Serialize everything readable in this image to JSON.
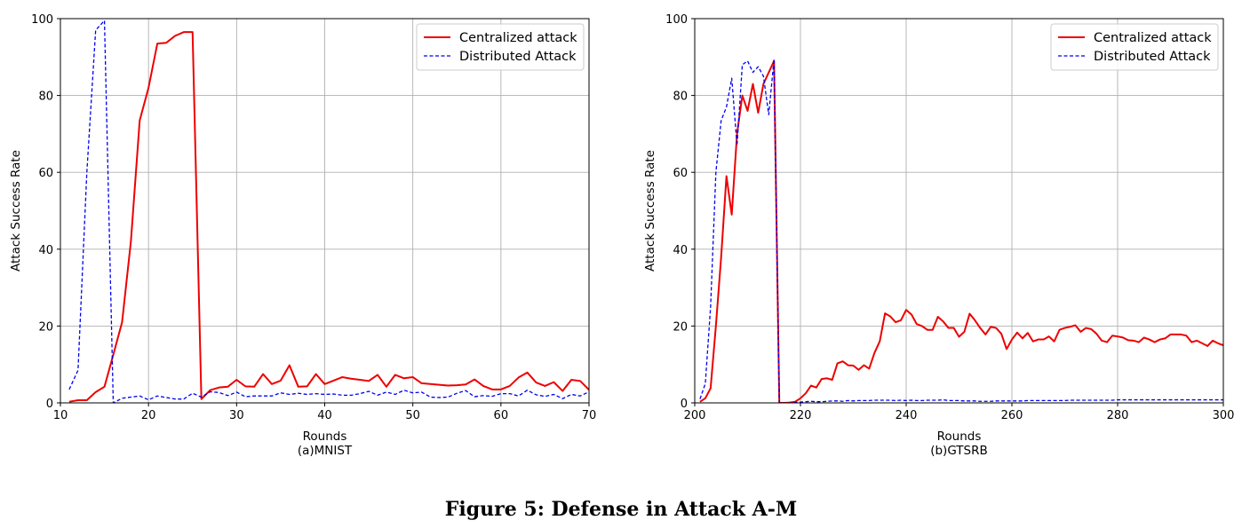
{
  "caption": "Figure 5: Defense in Attack A-M",
  "chart_data": [
    {
      "type": "line",
      "xlabel": "Rounds",
      "sublabel": "(a)MNIST",
      "ylabel": "Attack Success Rate",
      "xlim": [
        10,
        70
      ],
      "ylim": [
        0,
        100
      ],
      "xticks": [
        10,
        20,
        30,
        40,
        50,
        60,
        70
      ],
      "yticks": [
        0,
        20,
        40,
        60,
        80,
        100
      ],
      "grid": true,
      "legend_position": "top-right",
      "series": [
        {
          "name": "Centralized attack",
          "color": "#ee0000",
          "style": "solid",
          "x": [
            11,
            12,
            13,
            14,
            15,
            16,
            17,
            18,
            19,
            20,
            21,
            22,
            23,
            24,
            25,
            26,
            27,
            28,
            29,
            30,
            31,
            32,
            33,
            34,
            35,
            36,
            37,
            38,
            39,
            40,
            41,
            42,
            43,
            44,
            45,
            46,
            47,
            48,
            49,
            50,
            51,
            52,
            53,
            54,
            55,
            56,
            57,
            58,
            59,
            60,
            61,
            62,
            63,
            64,
            65,
            66,
            67,
            68,
            69,
            70
          ],
          "y": [
            0.3,
            0.7,
            0.7,
            2.8,
            4.2,
            12.5,
            21,
            42,
            73.5,
            82,
            93.5,
            93.7,
            95.5,
            96.5,
            96.5,
            1,
            3.3,
            4,
            4.2,
            6,
            4.3,
            4.2,
            7.5,
            4.9,
            5.8,
            9.8,
            4.2,
            4.3,
            7.5,
            4.9,
            5.8,
            6.7,
            6.3,
            6,
            5.7,
            7.3,
            4.2,
            7.3,
            6.4,
            6.7,
            5.1,
            4.9,
            4.7,
            4.5,
            4.6,
            4.8,
            6.1,
            4.4,
            3.5,
            3.5,
            4.4,
            6.6,
            7.9,
            5.3,
            4.4,
            5.4,
            3.1,
            6,
            5.7,
            3.4
          ]
        },
        {
          "name": "Distributed Attack",
          "color": "#0000ee",
          "style": "dashed",
          "x": [
            11,
            12,
            13,
            14,
            15,
            16,
            17,
            18,
            19,
            20,
            21,
            22,
            23,
            24,
            25,
            26,
            27,
            28,
            29,
            30,
            31,
            32,
            33,
            34,
            35,
            36,
            37,
            38,
            39,
            40,
            41,
            42,
            43,
            44,
            45,
            46,
            47,
            48,
            49,
            50,
            51,
            52,
            53,
            54,
            55,
            56,
            57,
            58,
            59,
            60,
            61,
            62,
            63,
            64,
            65,
            66,
            67,
            68,
            69,
            70
          ],
          "y": [
            3.5,
            8.5,
            60,
            97,
            99.5,
            0,
            1.2,
            1.5,
            1.8,
            0.8,
            1.8,
            1.4,
            1,
            1,
            2.5,
            1.5,
            2.9,
            2.7,
            1.9,
            2.8,
            1.6,
            1.8,
            1.8,
            1.8,
            2.6,
            2.2,
            2.5,
            2.2,
            2.4,
            2.2,
            2.3,
            2,
            2,
            2.4,
            3,
            2,
            2.8,
            2.2,
            3.3,
            2.6,
            2.8,
            1.5,
            1.4,
            1.5,
            2.5,
            3.2,
            1.6,
            1.9,
            1.7,
            2.4,
            2.4,
            1.8,
            3.3,
            2.1,
            1.7,
            2.2,
            1.1,
            2.2,
            1.8,
            2.9
          ]
        }
      ]
    },
    {
      "type": "line",
      "xlabel": "Rounds",
      "sublabel": "(b)GTSRB",
      "ylabel": "Attack Success Rate",
      "xlim": [
        200,
        300
      ],
      "ylim": [
        0,
        100
      ],
      "xticks": [
        200,
        220,
        240,
        260,
        280,
        300
      ],
      "yticks": [
        0,
        20,
        40,
        60,
        80,
        100
      ],
      "grid": true,
      "legend_position": "top-right",
      "series": [
        {
          "name": "Centralized attack",
          "color": "#ee0000",
          "style": "solid",
          "x": [
            201,
            202,
            203,
            204,
            205,
            206,
            207,
            208,
            209,
            210,
            211,
            212,
            213,
            214,
            215,
            216,
            217,
            218,
            219,
            220,
            221,
            222,
            223,
            224,
            225,
            226,
            227,
            228,
            229,
            230,
            231,
            232,
            233,
            234,
            235,
            236,
            237,
            238,
            239,
            240,
            241,
            242,
            243,
            244,
            245,
            246,
            247,
            248,
            249,
            250,
            251,
            252,
            253,
            254,
            255,
            256,
            257,
            258,
            259,
            260,
            261,
            262,
            263,
            264,
            265,
            266,
            267,
            268,
            269,
            270,
            271,
            272,
            273,
            274,
            275,
            276,
            277,
            278,
            279,
            280,
            281,
            282,
            283,
            284,
            285,
            286,
            287,
            288,
            289,
            290,
            291,
            292,
            293,
            294,
            295,
            296,
            297,
            298,
            299,
            300
          ],
          "y": [
            0.3,
            1.2,
            3.8,
            20,
            38,
            59,
            49,
            70,
            80,
            76,
            83,
            75.5,
            83,
            86,
            89,
            0,
            0,
            0.1,
            0.3,
            1.2,
            2.5,
            4.5,
            4,
            6.2,
            6.4,
            6,
            10.3,
            10.8,
            9.8,
            9.7,
            8.6,
            9.8,
            8.9,
            13,
            16,
            23.3,
            22.5,
            21,
            21.5,
            24.2,
            23,
            20.5,
            20,
            19,
            19,
            22.4,
            21.2,
            19.5,
            19.5,
            17.2,
            18.5,
            23.2,
            21.5,
            19.5,
            17.8,
            19.8,
            19.5,
            18,
            14,
            16.5,
            18.3,
            16.8,
            18.2,
            16,
            16.5,
            16.5,
            17.3,
            16,
            19,
            19.5,
            19.8,
            20.2,
            18.5,
            19.5,
            19.2,
            18,
            16.2,
            15.8,
            17.5,
            17.3,
            17,
            16.3,
            16.2,
            15.8,
            17,
            16.5,
            15.8,
            16.5,
            16.8,
            17.8,
            17.8,
            17.8,
            17.5,
            15.8,
            16.2,
            15.5,
            14.8,
            16.2,
            15.5,
            15
          ]
        },
        {
          "name": "Distributed Attack",
          "color": "#0000ee",
          "style": "dashed",
          "x": [
            201,
            202,
            203,
            204,
            205,
            206,
            207,
            208,
            209,
            210,
            211,
            212,
            213,
            214,
            215,
            216,
            217,
            218,
            219,
            220,
            221,
            222,
            223,
            224,
            225,
            226,
            227,
            228,
            229,
            230,
            231,
            232,
            233,
            234,
            235,
            236,
            237,
            238,
            239,
            240,
            241,
            242,
            243,
            244,
            245,
            246,
            247,
            248,
            249,
            250,
            251,
            252,
            253,
            254,
            255,
            256,
            257,
            258,
            259,
            260,
            261,
            262,
            263,
            264,
            265,
            266,
            267,
            268,
            269,
            270,
            271,
            272,
            273,
            274,
            275,
            276,
            277,
            278,
            279,
            280,
            281,
            282,
            283,
            284,
            285,
            286,
            287,
            288,
            289,
            290,
            291,
            292,
            293,
            294,
            295,
            296,
            297,
            298,
            299,
            300
          ],
          "y": [
            1,
            5,
            25,
            60,
            73.5,
            77,
            84.5,
            67,
            88,
            89,
            86,
            87.5,
            85,
            75,
            89.5,
            0,
            0,
            0,
            0.1,
            0.2,
            0.3,
            0.4,
            0.3,
            0.3,
            0.4,
            0.5,
            0.5,
            0.4,
            0.6,
            0.5,
            0.6,
            0.6,
            0.6,
            0.7,
            0.7,
            0.7,
            0.7,
            0.6,
            0.7,
            0.6,
            0.7,
            0.6,
            0.6,
            0.7,
            0.7,
            0.7,
            0.8,
            0.6,
            0.6,
            0.6,
            0.5,
            0.5,
            0.5,
            0.4,
            0.4,
            0.4,
            0.5,
            0.5,
            0.5,
            0.5,
            0.5,
            0.5,
            0.6,
            0.6,
            0.6,
            0.6,
            0.6,
            0.6,
            0.6,
            0.6,
            0.7,
            0.7,
            0.7,
            0.7,
            0.7,
            0.7,
            0.7,
            0.7,
            0.7,
            0.8,
            0.8,
            0.8,
            0.8,
            0.8,
            0.8,
            0.8,
            0.8,
            0.8,
            0.8,
            0.8,
            0.8,
            0.8,
            0.8,
            0.8,
            0.8,
            0.8,
            0.8,
            0.8,
            0.8,
            0.8
          ]
        }
      ]
    }
  ]
}
